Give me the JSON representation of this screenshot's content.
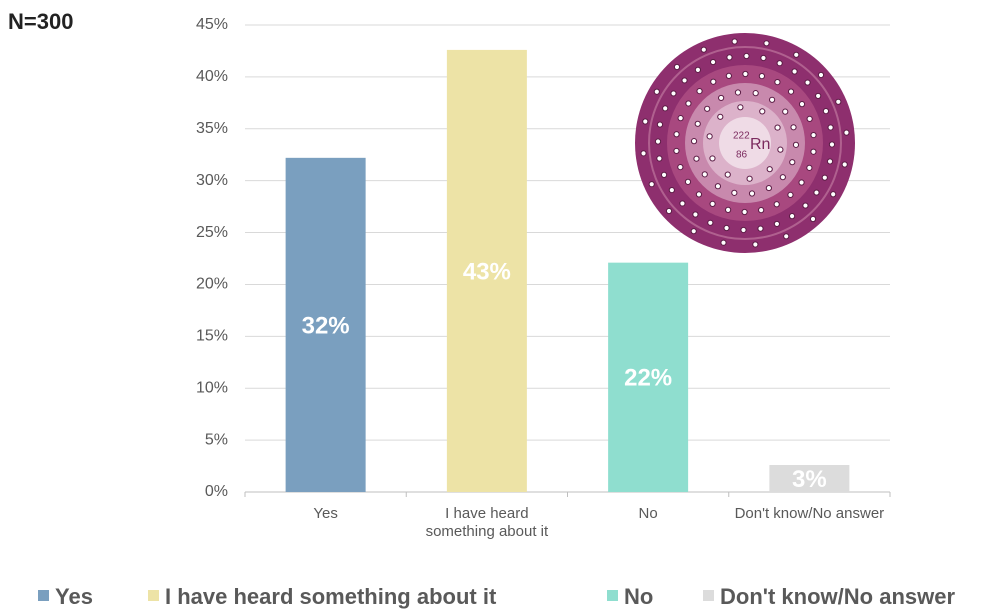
{
  "chart_data": {
    "type": "bar",
    "annotation": "N=300",
    "categories": [
      "Yes",
      "I have heard something about it",
      "No",
      "Don't know/No answer"
    ],
    "values": [
      32.2,
      42.6,
      22.1,
      2.6
    ],
    "value_labels": [
      "32%",
      "43%",
      "22%",
      "3%"
    ],
    "colors": [
      "#7a9fbf",
      "#ede3a6",
      "#8fdecf",
      "#dcdcdc"
    ],
    "ylim": [
      0,
      45
    ],
    "yticks": [
      {
        "value": 0,
        "label": "0%"
      },
      {
        "value": 5,
        "label": "5%"
      },
      {
        "value": 10,
        "label": "10%"
      },
      {
        "value": 15,
        "label": "15%"
      },
      {
        "value": 20,
        "label": "20%"
      },
      {
        "value": 25,
        "label": "25%"
      },
      {
        "value": 30,
        "label": "30%"
      },
      {
        "value": 35,
        "label": "35%"
      },
      {
        "value": 40,
        "label": "40%"
      },
      {
        "value": 45,
        "label": "45%"
      }
    ],
    "grid": true,
    "legend": "bottom",
    "inset": {
      "mass_number": "222",
      "atomic_number": "86",
      "symbol": "Rn"
    }
  }
}
